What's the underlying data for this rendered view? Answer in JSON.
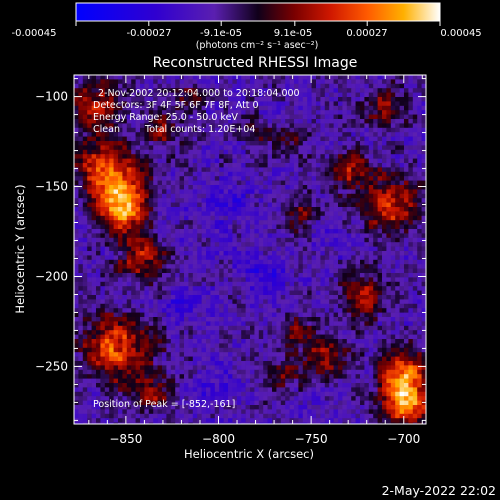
{
  "colorbar": {
    "ticks": [
      "-0.00045",
      "-0.00027",
      "-9.1e-05",
      "9.1e-05",
      "0.00027",
      "0.00045"
    ],
    "tick_values": [
      -0.00045,
      -0.00027,
      -9.1e-05,
      9.1e-05,
      0.00027,
      0.00045
    ],
    "range": [
      -0.00045,
      0.00045
    ],
    "unit_label": "(photons cm⁻² s⁻¹ asec⁻²)"
  },
  "chart_data": {
    "type": "heatmap",
    "title": "Reconstructed RHESSI Image",
    "xlabel": "Heliocentric X (arcsec)",
    "ylabel": "Heliocentric Y (arcsec)",
    "xlim": [
      -878,
      -688
    ],
    "ylim": [
      -282,
      -88
    ],
    "xticks": [
      -850,
      -800,
      -750,
      -700
    ],
    "yticks": [
      -100,
      -150,
      -200,
      -250
    ],
    "annotations": [
      "2-Nov-2002 20:12:04.000 to 20:18:04.000",
      "Detectors: 3F 4F 5F 6F 7F 8F, Att 0",
      "Energy Range: 25.0 - 50.0 keV",
      "Clean",
      "Total counts: 1.20E+04",
      "Position of Peak = [-852,-161]"
    ],
    "peak": {
      "x": -852,
      "y": -161
    },
    "sources": [
      {
        "x": -852,
        "y": -161,
        "sigma": 10,
        "amp": 1.0
      },
      {
        "x": -860,
        "y": -140,
        "sigma": 12,
        "amp": 0.75
      },
      {
        "x": -842,
        "y": -190,
        "sigma": 9,
        "amp": 0.55
      },
      {
        "x": -855,
        "y": -240,
        "sigma": 13,
        "amp": 0.8
      },
      {
        "x": -835,
        "y": -265,
        "sigma": 8,
        "amp": 0.45
      },
      {
        "x": -868,
        "y": -105,
        "sigma": 10,
        "amp": 0.6
      },
      {
        "x": -830,
        "y": -118,
        "sigma": 7,
        "amp": 0.45
      },
      {
        "x": -700,
        "y": -255,
        "sigma": 9,
        "amp": 0.95
      },
      {
        "x": -698,
        "y": -272,
        "sigma": 8,
        "amp": 0.9
      },
      {
        "x": -708,
        "y": -160,
        "sigma": 11,
        "amp": 0.7
      },
      {
        "x": -728,
        "y": -140,
        "sigma": 8,
        "amp": 0.55
      },
      {
        "x": -722,
        "y": -210,
        "sigma": 9,
        "amp": 0.55
      },
      {
        "x": -742,
        "y": -246,
        "sigma": 8,
        "amp": 0.55
      },
      {
        "x": -758,
        "y": -230,
        "sigma": 7,
        "amp": 0.4
      },
      {
        "x": -765,
        "y": -255,
        "sigma": 7,
        "amp": 0.35
      },
      {
        "x": -710,
        "y": -105,
        "sigma": 8,
        "amp": 0.45
      },
      {
        "x": -760,
        "y": -125,
        "sigma": 6,
        "amp": 0.3
      },
      {
        "x": -780,
        "y": -120,
        "sigma": 6,
        "amp": 0.25
      },
      {
        "x": -755,
        "y": -165,
        "sigma": 7,
        "amp": 0.35
      },
      {
        "x": -815,
        "y": -100,
        "sigma": 6,
        "amp": 0.3
      },
      {
        "x": -820,
        "y": -215,
        "sigma": 6,
        "amp": -0.3
      },
      {
        "x": -795,
        "y": -160,
        "sigma": 8,
        "amp": -0.25
      },
      {
        "x": -775,
        "y": -200,
        "sigma": 8,
        "amp": -0.3
      },
      {
        "x": -735,
        "y": -180,
        "sigma": 7,
        "amp": -0.2
      },
      {
        "x": -805,
        "y": -260,
        "sigma": 7,
        "amp": -0.25
      }
    ]
  },
  "timestamp": "2-May-2022 22:02",
  "colors": {
    "background": "#000000",
    "text": "#ffffff"
  }
}
